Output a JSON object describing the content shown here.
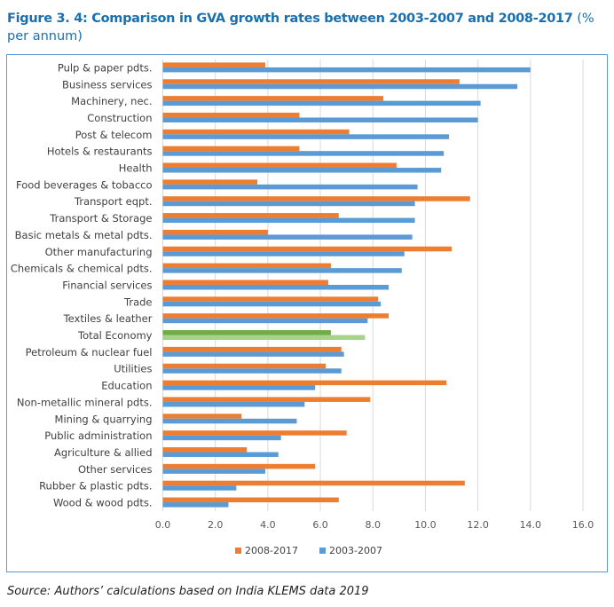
{
  "title": {
    "main": "Figure 3. 4: Comparison in GVA growth rates between 2003-2007 and 2008-2017",
    "unit": "(% per annum)"
  },
  "source": "Source: Authors’ calculations based on India KLEMS data 2019",
  "colors": {
    "2008-2017": "#ED7D31",
    "2003-2007": "#5B9BD5",
    "total_2008-2017": "#70AD47",
    "total_2003-2007": "#A9D18E",
    "title": "#1A6FAD"
  },
  "chart_data": {
    "type": "bar",
    "orientation": "horizontal",
    "title": "",
    "xlabel": "",
    "ylabel": "",
    "xlim": [
      0,
      16
    ],
    "xticks": [
      "0.0",
      "2.0",
      "4.0",
      "6.0",
      "8.0",
      "10.0",
      "12.0",
      "14.0",
      "16.0"
    ],
    "grid": true,
    "legend_position": "bottom",
    "categories": [
      "Pulp & paper pdts.",
      "Business services",
      "Machinery, nec.",
      "Construction",
      "Post & telecom",
      "Hotels & restaurants",
      "Health",
      "Food beverages & tobacco",
      "Transport eqpt.",
      "Transport & Storage",
      "Basic metals & metal pdts.",
      "Other manufacturing",
      "Chemicals & chemical pdts.",
      "Financial services",
      "Trade",
      "Textiles & leather",
      "Total Economy",
      "Petroleum & nuclear fuel",
      "Utilities",
      "Education",
      "Non-metallic mineral pdts.",
      "Mining & quarrying",
      "Public administration",
      "Agriculture & allied",
      "Other services",
      "Rubber & plastic pdts.",
      "Wood & wood pdts."
    ],
    "highlight_category": "Total Economy",
    "series": [
      {
        "name": "2008-2017",
        "values": [
          3.9,
          11.3,
          8.4,
          5.2,
          7.1,
          5.2,
          8.9,
          3.6,
          11.7,
          6.7,
          4.0,
          11.0,
          6.4,
          6.3,
          8.2,
          8.6,
          6.4,
          6.8,
          6.2,
          10.8,
          7.9,
          3.0,
          7.0,
          3.2,
          5.8,
          11.5,
          6.7
        ]
      },
      {
        "name": "2003-2007",
        "values": [
          14.0,
          13.5,
          12.1,
          12.0,
          10.9,
          10.7,
          10.6,
          9.7,
          9.6,
          9.6,
          9.5,
          9.2,
          9.1,
          8.6,
          8.3,
          7.8,
          7.7,
          6.9,
          6.8,
          5.8,
          5.4,
          5.1,
          4.5,
          4.4,
          3.9,
          2.8,
          2.5
        ]
      }
    ]
  }
}
